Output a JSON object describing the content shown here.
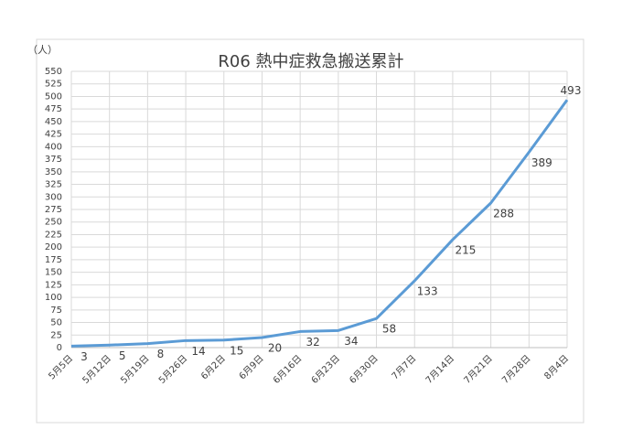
{
  "chart_data": {
    "type": "line",
    "title": "R06 熱中症救急搬送累計",
    "y_unit": "（人）",
    "categories": [
      "5月5日",
      "5月12日",
      "5月19日",
      "5月26日",
      "6月2日",
      "6月9日",
      "6月16日",
      "6月23日",
      "6月30日",
      "7月7日",
      "7月14日",
      "7月21日",
      "7月28日",
      "8月4日"
    ],
    "series": [
      {
        "name": "累計",
        "color": "#5b9bd5",
        "values": [
          3,
          5,
          8,
          14,
          15,
          20,
          32,
          34,
          58,
          133,
          215,
          288,
          389,
          493
        ]
      }
    ],
    "ylim": [
      0,
      550
    ],
    "yticks": [
      0,
      25,
      50,
      75,
      100,
      125,
      150,
      175,
      200,
      225,
      250,
      275,
      300,
      325,
      350,
      375,
      400,
      425,
      450,
      475,
      500,
      525,
      550
    ],
    "grid": true
  }
}
